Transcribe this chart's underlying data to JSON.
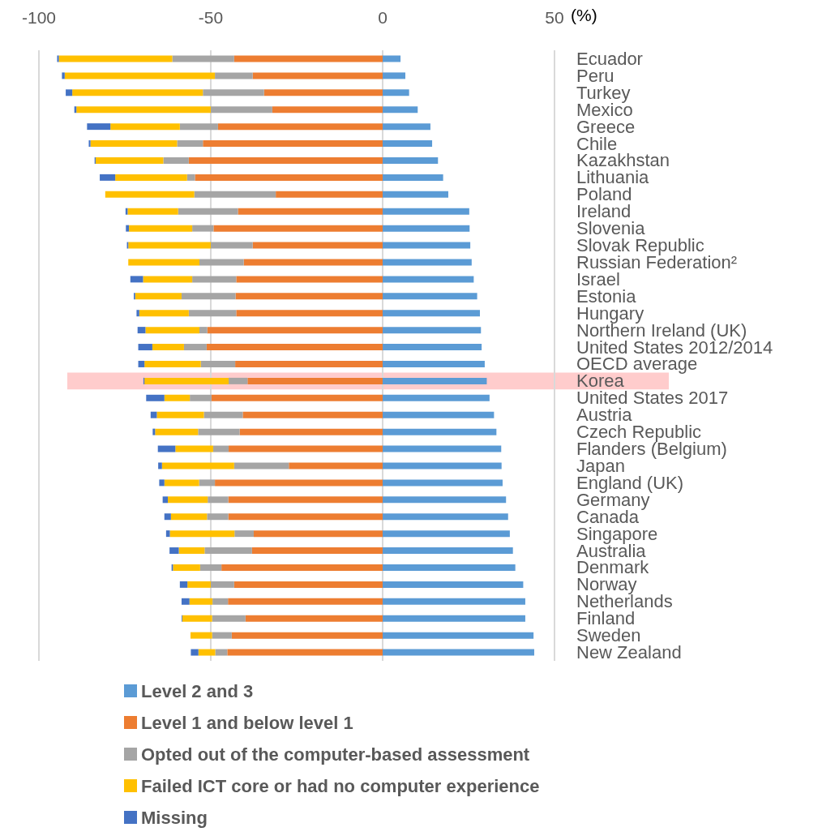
{
  "chart_data": {
    "type": "bar",
    "orientation": "horizontal",
    "stacked": true,
    "xlabel": "(%)",
    "categories": [
      "Ecuador",
      "Peru",
      "Turkey",
      "Mexico",
      "Greece",
      "Chile",
      "Kazakhstan",
      "Lithuania",
      "Poland",
      "Ireland",
      "Slovenia",
      "Slovak Republic",
      "Russian Federation²",
      "Israel",
      "Estonia",
      "Hungary",
      "Northern Ireland (UK)",
      "United States 2012/2014",
      "OECD average",
      "Korea",
      "United States 2017",
      "Austria",
      "Czech Republic",
      "Flanders (Belgium)",
      "Japan",
      "England (UK)",
      "Germany",
      "Canada",
      "Singapore",
      "Australia",
      "Denmark",
      "Norway",
      "Netherlands",
      "Finland",
      "Sweden",
      "New Zealand"
    ],
    "series": [
      {
        "name": "Level 2 and 3",
        "color": "#5b9bd5",
        "values": [
          5.2,
          6.6,
          7.7,
          10.2,
          13.9,
          14.4,
          16.1,
          17.6,
          19.1,
          25.2,
          25.3,
          25.5,
          25.9,
          26.5,
          27.5,
          28.3,
          28.6,
          28.8,
          29.7,
          30.3,
          31.1,
          32.4,
          33.1,
          34.5,
          34.6,
          34.9,
          35.9,
          36.5,
          37.0,
          37.9,
          38.6,
          40.9,
          41.5,
          41.5,
          43.9,
          44.1
        ]
      },
      {
        "name": "Level 1 and below level 1",
        "color": "#ed7d31",
        "values": [
          -43.2,
          -37.8,
          -34.5,
          -32.1,
          -47.9,
          -52.3,
          -56.4,
          -54.6,
          -31.1,
          -42.1,
          -49.2,
          -37.8,
          -40.4,
          -42.6,
          -42.8,
          -42.6,
          -51.0,
          -51.2,
          -42.9,
          -39.3,
          -49.8,
          -40.7,
          -41.6,
          -44.8,
          -27.3,
          -48.8,
          -44.9,
          -44.9,
          -37.5,
          -38.0,
          -46.9,
          -43.2,
          -45.0,
          -39.9,
          -43.9,
          -45.2
        ]
      },
      {
        "name": "Opted out of the computer-based assessment",
        "color": "#a5a5a5",
        "values": [
          -18.0,
          -11.0,
          -17.8,
          -17.9,
          -11.1,
          -7.5,
          -7.4,
          -2.3,
          -23.7,
          -17.4,
          -6.2,
          -12.2,
          -12.9,
          -12.8,
          -15.7,
          -13.8,
          -2.3,
          -6.6,
          -10.0,
          -5.5,
          -6.3,
          -11.3,
          -12.1,
          -4.5,
          -15.9,
          -4.6,
          -6.0,
          -6.2,
          -5.6,
          -13.8,
          -6.2,
          -6.8,
          -4.5,
          -9.7,
          -5.7,
          -3.5
        ]
      },
      {
        "name": "Failed ICT core or had no computer experience",
        "color": "#ffc000",
        "values": [
          -33.0,
          -43.7,
          -38.0,
          -39.1,
          -20.2,
          -25.2,
          -19.7,
          -20.9,
          -25.9,
          -14.7,
          -18.4,
          -24.0,
          -20.7,
          -14.3,
          -13.5,
          -14.4,
          -15.7,
          -9.2,
          -16.4,
          -24.5,
          -7.4,
          -13.7,
          -12.5,
          -11.0,
          -21.0,
          -10.1,
          -11.6,
          -10.5,
          -18.8,
          -7.5,
          -7.9,
          -6.8,
          -6.7,
          -8.7,
          -6.3,
          -4.9
        ]
      },
      {
        "name": "Missing",
        "color": "#4472c4",
        "values": [
          -0.5,
          -0.8,
          -1.9,
          -0.6,
          -6.8,
          -0.5,
          -0.3,
          -4.5,
          null,
          -0.6,
          -0.9,
          -0.4,
          null,
          -3.7,
          -0.4,
          -0.8,
          -2.3,
          -4.1,
          -1.8,
          -0.3,
          -5.3,
          -1.8,
          -0.7,
          -5.1,
          -1.1,
          -1.5,
          -1.5,
          -1.9,
          -1.1,
          -2.7,
          -0.4,
          -2.2,
          -2.3,
          -0.2,
          null,
          -2.2
        ]
      }
    ],
    "xlim": [
      -100,
      50
    ],
    "xticks": [
      -100,
      -50,
      0,
      50
    ],
    "grid": "x",
    "legend": "bottom",
    "bands": [
      {
        "axis": "y",
        "from": "Korea",
        "to": "Korea",
        "color": "#ff9999"
      }
    ]
  }
}
